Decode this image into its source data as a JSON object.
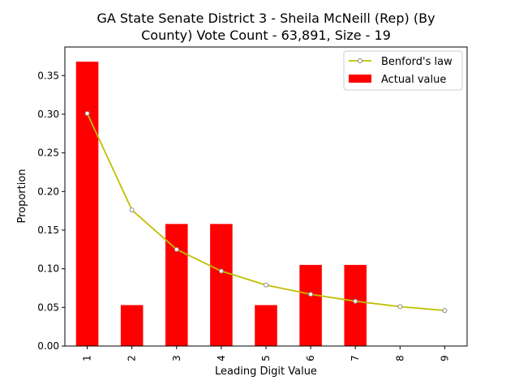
{
  "chart_data": {
    "type": "bar",
    "title_lines": [
      "GA State Senate District 3 - Sheila McNeill (Rep) (By",
      "County) Vote Count - 63,891, Size - 19"
    ],
    "xlabel": "Leading Digit Value",
    "ylabel": "Proportion",
    "categories": [
      "1",
      "2",
      "3",
      "4",
      "5",
      "6",
      "7",
      "8",
      "9"
    ],
    "ylim": [
      0,
      0.387
    ],
    "yticks": [
      "0.00",
      "0.05",
      "0.10",
      "0.15",
      "0.20",
      "0.25",
      "0.30",
      "0.35"
    ],
    "series": [
      {
        "name": "Actual value",
        "kind": "bar",
        "color": "#ff0000",
        "values": [
          0.368,
          0.053,
          0.158,
          0.158,
          0.053,
          0.105,
          0.105,
          0.0,
          0.0
        ]
      },
      {
        "name": "Benford's law",
        "kind": "line",
        "color": "#bfbf00",
        "values": [
          0.301,
          0.176,
          0.125,
          0.097,
          0.079,
          0.067,
          0.058,
          0.051,
          0.046
        ]
      }
    ],
    "legend_position": "top-right",
    "grid": false
  }
}
